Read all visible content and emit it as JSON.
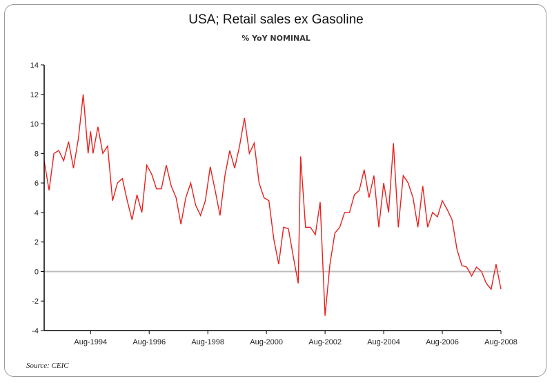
{
  "colors": {
    "series": "#e8201c",
    "zero_line": "#bdbdbd",
    "axis": "#000000"
  },
  "source": "Source: CEIC",
  "chart_data": {
    "type": "line",
    "title": "USA; Retail sales ex Gasoline",
    "subtitle": "% YoY NOMINAL",
    "xlabel": "",
    "ylabel": "",
    "ylim": [
      -4,
      14
    ],
    "yticks": [
      14,
      12,
      10,
      8,
      6,
      4,
      2,
      0,
      -2,
      -4
    ],
    "xlim": [
      "1993-01",
      "2008-08"
    ],
    "xticks": [
      "Aug-1994",
      "Aug-1996",
      "Aug-1998",
      "Aug-2000",
      "Aug-2002",
      "Aug-2004",
      "Aug-2006",
      "Aug-2008"
    ],
    "reference_line": 0,
    "grid": false,
    "legend": "none",
    "series": [
      {
        "x": [
          "1993-01",
          "1993-03",
          "1993-05",
          "1993-07",
          "1993-09",
          "1993-11",
          "1994-01",
          "1994-03",
          "1994-05",
          "1994-07",
          "1994-08",
          "1994-09",
          "1994-11",
          "1995-01",
          "1995-03",
          "1995-05",
          "1995-07",
          "1995-09",
          "1995-11",
          "1996-01",
          "1996-03",
          "1996-05",
          "1996-07",
          "1996-09",
          "1996-11",
          "1997-01",
          "1997-03",
          "1997-05",
          "1997-07",
          "1997-09",
          "1997-11",
          "1998-01",
          "1998-03",
          "1998-05",
          "1998-07",
          "1998-09",
          "1998-11",
          "1999-01",
          "1999-03",
          "1999-05",
          "1999-07",
          "1999-09",
          "1999-11",
          "2000-01",
          "2000-03",
          "2000-05",
          "2000-07",
          "2000-09",
          "2000-11",
          "2001-01",
          "2001-03",
          "2001-05",
          "2001-07",
          "2001-09",
          "2001-10",
          "2001-12",
          "2002-02",
          "2002-04",
          "2002-06",
          "2002-08",
          "2002-10",
          "2002-12",
          "2003-02",
          "2003-04",
          "2003-06",
          "2003-08",
          "2003-10",
          "2003-12",
          "2004-02",
          "2004-04",
          "2004-06",
          "2004-08",
          "2004-10",
          "2004-12",
          "2005-02",
          "2005-04",
          "2005-06",
          "2005-08",
          "2005-10",
          "2005-12",
          "2006-02",
          "2006-04",
          "2006-06",
          "2006-08",
          "2006-10",
          "2006-12",
          "2007-02",
          "2007-04",
          "2007-06",
          "2007-08",
          "2007-10",
          "2007-12",
          "2008-02",
          "2008-04",
          "2008-06",
          "2008-08"
        ],
        "values": [
          7.5,
          5.5,
          8.0,
          8.2,
          7.5,
          8.8,
          7.0,
          9.0,
          12.0,
          8.0,
          9.5,
          8.0,
          9.8,
          8.0,
          8.5,
          4.8,
          6.0,
          6.3,
          4.8,
          3.5,
          5.2,
          4.0,
          7.2,
          6.6,
          5.6,
          5.6,
          7.2,
          5.8,
          5.0,
          3.2,
          5.0,
          6.0,
          4.5,
          3.8,
          4.8,
          7.1,
          5.5,
          3.8,
          6.5,
          8.2,
          7.0,
          8.5,
          10.4,
          8.0,
          8.7,
          6.0,
          5.0,
          4.8,
          2.2,
          0.5,
          3.0,
          2.9,
          1.0,
          -0.8,
          7.8,
          3.0,
          3.0,
          2.5,
          4.7,
          -3.0,
          0.5,
          2.6,
          3.0,
          4.0,
          4.0,
          5.2,
          5.5,
          6.9,
          5.0,
          6.5,
          3.0,
          6.0,
          4.0,
          8.7,
          3.0,
          6.5,
          6.0,
          5.0,
          3.0,
          5.8,
          3.0,
          4.0,
          3.7,
          4.8,
          4.2,
          3.5,
          1.5,
          0.4,
          0.3,
          -0.3,
          0.3,
          0.0,
          -0.8,
          -1.2,
          0.5,
          -1.2
        ]
      }
    ]
  }
}
